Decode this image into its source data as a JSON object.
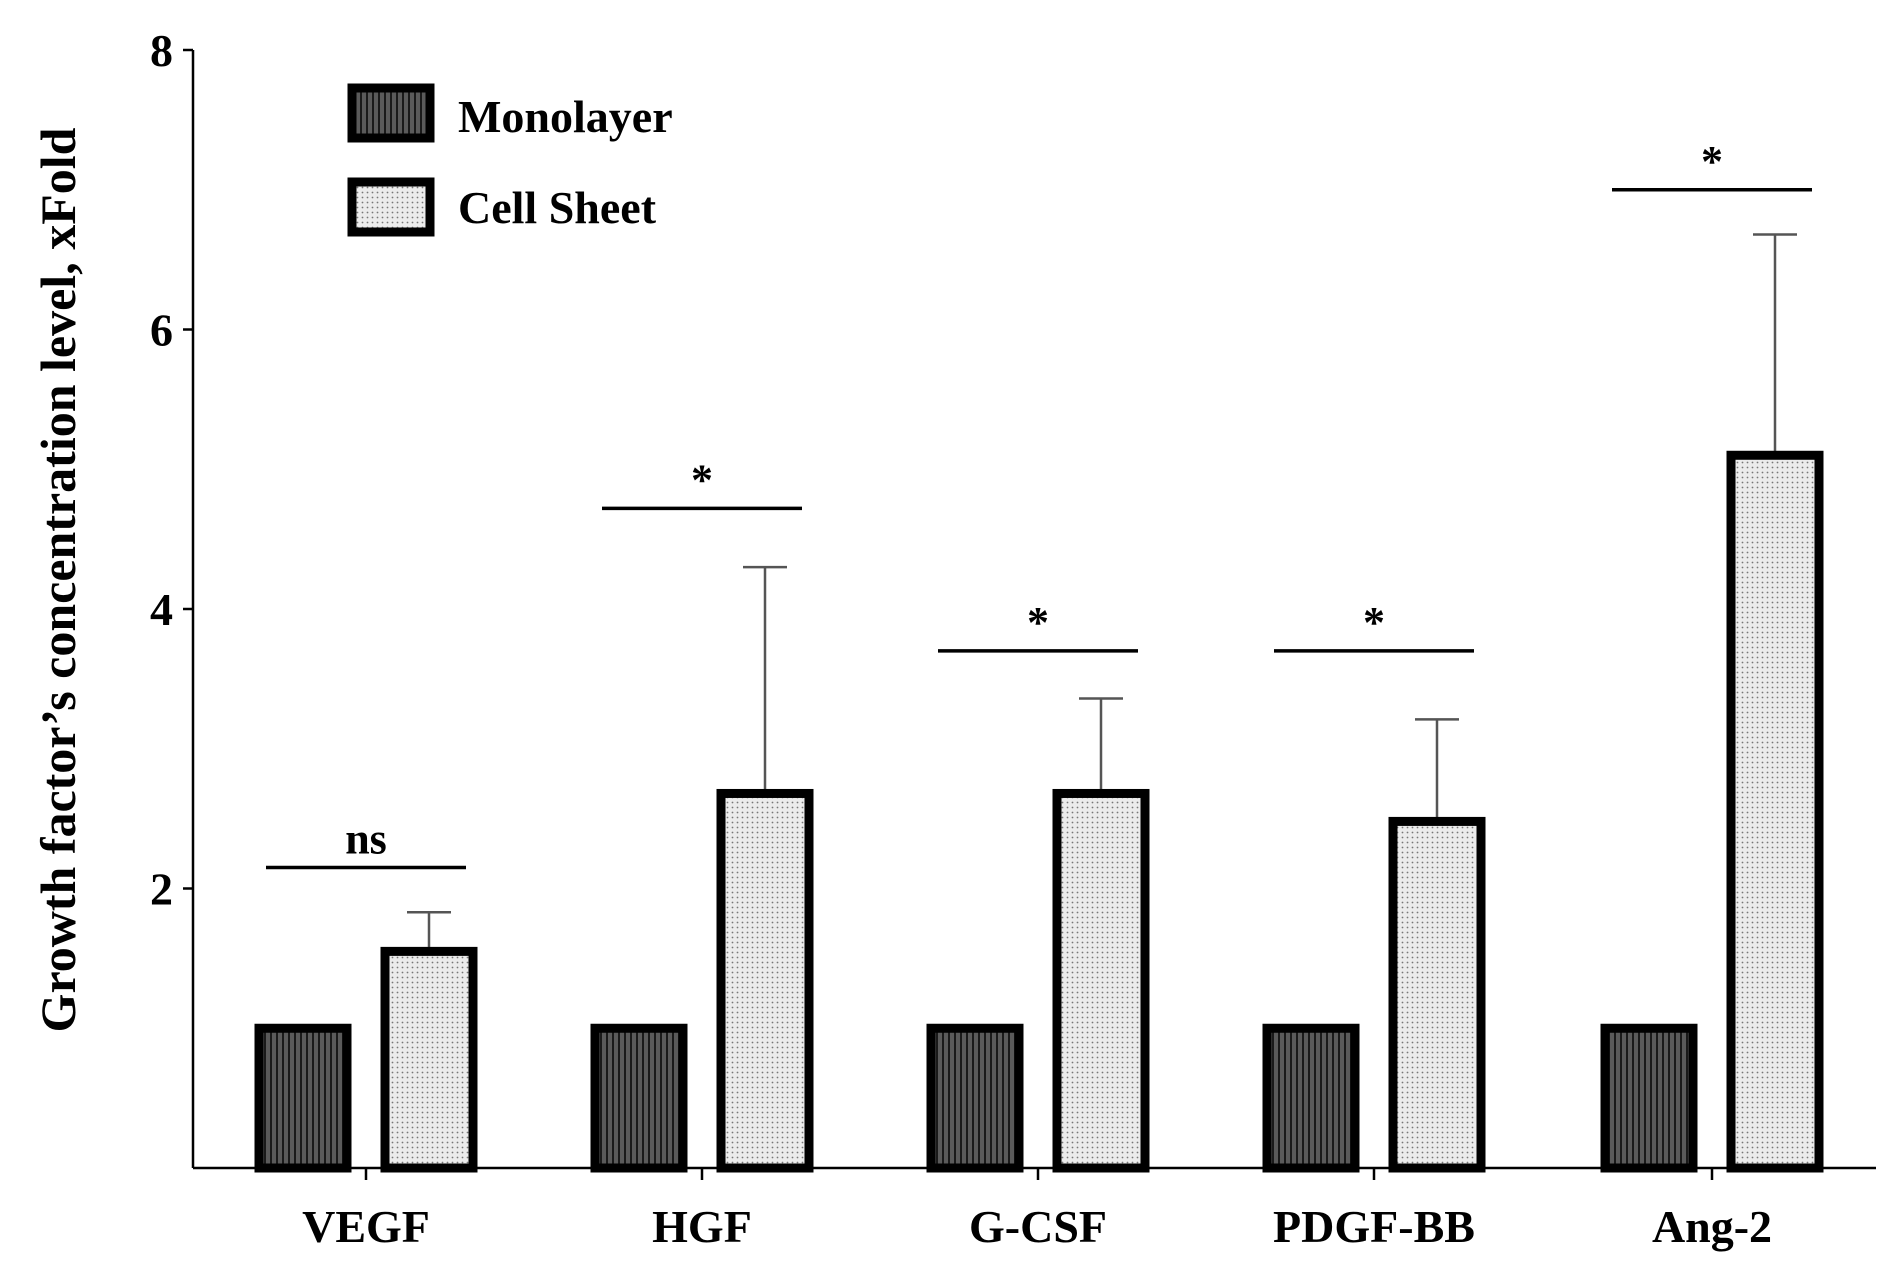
{
  "chart_data": {
    "type": "bar",
    "title": "",
    "xlabel": "",
    "ylabel": "Growth factor’s concentration level,  xFold",
    "ylim": [
      0,
      8
    ],
    "yticks": [
      2,
      4,
      6,
      8
    ],
    "categories": [
      "VEGF",
      "HGF",
      "G-CSF",
      "PDGF-BB",
      "Ang-2"
    ],
    "series": [
      {
        "name": "Monolayer",
        "values": [
          1.0,
          1.0,
          1.0,
          1.0,
          1.0
        ],
        "error": [
          0,
          0,
          0,
          0,
          0
        ],
        "pattern": "vertical-stripes"
      },
      {
        "name": "Cell Sheet",
        "values": [
          1.55,
          2.68,
          2.68,
          2.48,
          5.1
        ],
        "error": [
          0.28,
          1.62,
          0.68,
          0.73,
          1.58
        ],
        "pattern": "dots"
      }
    ],
    "significance": [
      "ns",
      "*",
      "*",
      "*",
      "*"
    ],
    "significance_levels": [
      2.15,
      4.72,
      3.7,
      3.7,
      7.0
    ],
    "legend_position": "top-left",
    "colors": {
      "monolayer_fill": "#4a4a4a",
      "cellsheet_fill": "#e8e8e8",
      "outline": "#000000"
    }
  }
}
